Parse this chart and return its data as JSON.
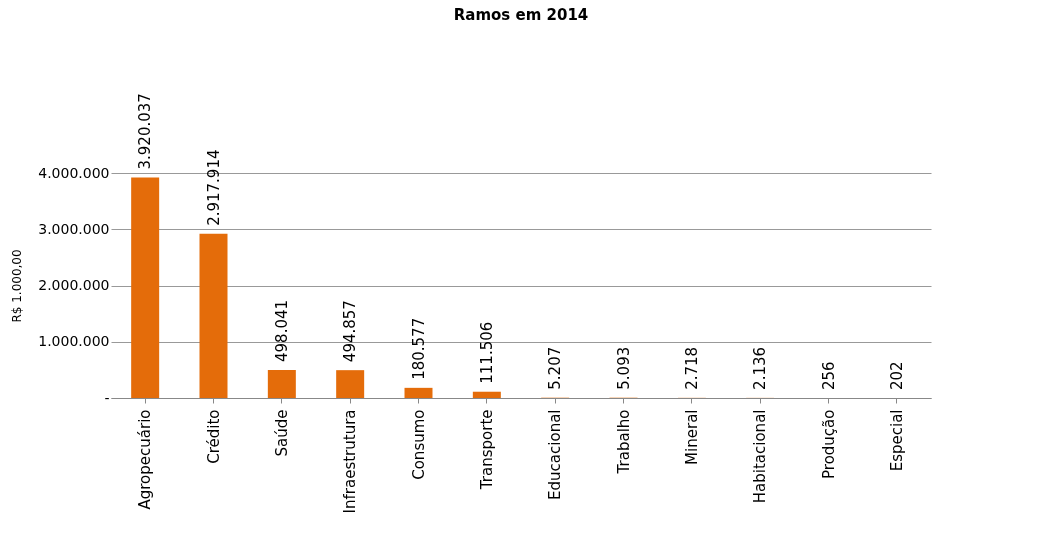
{
  "chart_data": {
    "type": "bar",
    "title": "Ramos em 2014",
    "ylabel": "R$ 1.000,00",
    "categories": [
      "Agropecuário",
      "Crédito",
      "Saúde",
      "Infraestrutura",
      "Consumo",
      "Transporte",
      "Educacional",
      "Trabalho",
      "Mineral",
      "Habitacional",
      "Produção",
      "Especial"
    ],
    "values": [
      3920037,
      2917914,
      498041,
      494857,
      180577,
      111506,
      5207,
      5093,
      2718,
      2136,
      256,
      202
    ],
    "value_labels": [
      "3.920.037",
      "2.917.914",
      "498.041",
      "494.857",
      "180.577",
      "111.506",
      "5.207",
      "5.093",
      "2.718",
      "2.136",
      "256",
      "202"
    ],
    "color": "#e46c0a",
    "ylim": [
      0,
      4000000
    ],
    "yticks": [
      {
        "value": 0,
        "label": "-"
      },
      {
        "value": 1000000,
        "label": "1.000.000"
      },
      {
        "value": 2000000,
        "label": "2.000.000"
      },
      {
        "value": 3000000,
        "label": "3.000.000"
      },
      {
        "value": 4000000,
        "label": "4.000.000"
      }
    ],
    "grid": "y"
  }
}
